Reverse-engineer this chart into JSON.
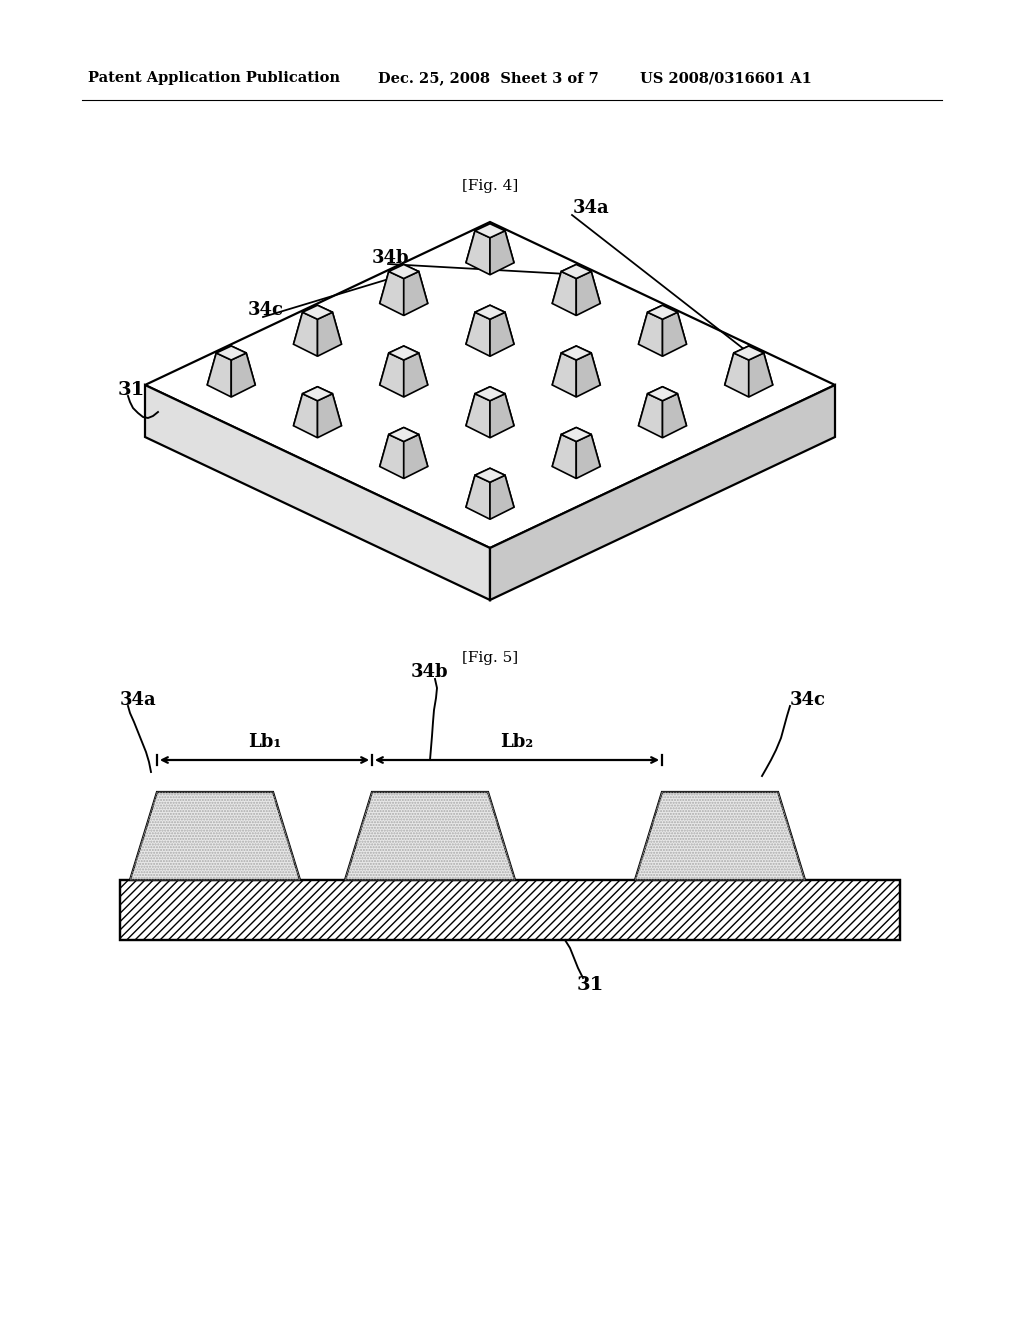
{
  "background_color": "#ffffff",
  "header_left": "Patent Application Publication",
  "header_center": "Dec. 25, 2008  Sheet 3 of 7",
  "header_right": "US 2008/0316601 A1",
  "fig4_label": "[Fig. 4]",
  "fig5_label": "[Fig. 5]",
  "label_31": "31",
  "label_34a": "34a",
  "label_34b": "34b",
  "label_34c": "34c",
  "label_Lb1": "Lb₁",
  "label_Lb2": "Lb₂",
  "line_color": "#000000",
  "lw": 1.6
}
